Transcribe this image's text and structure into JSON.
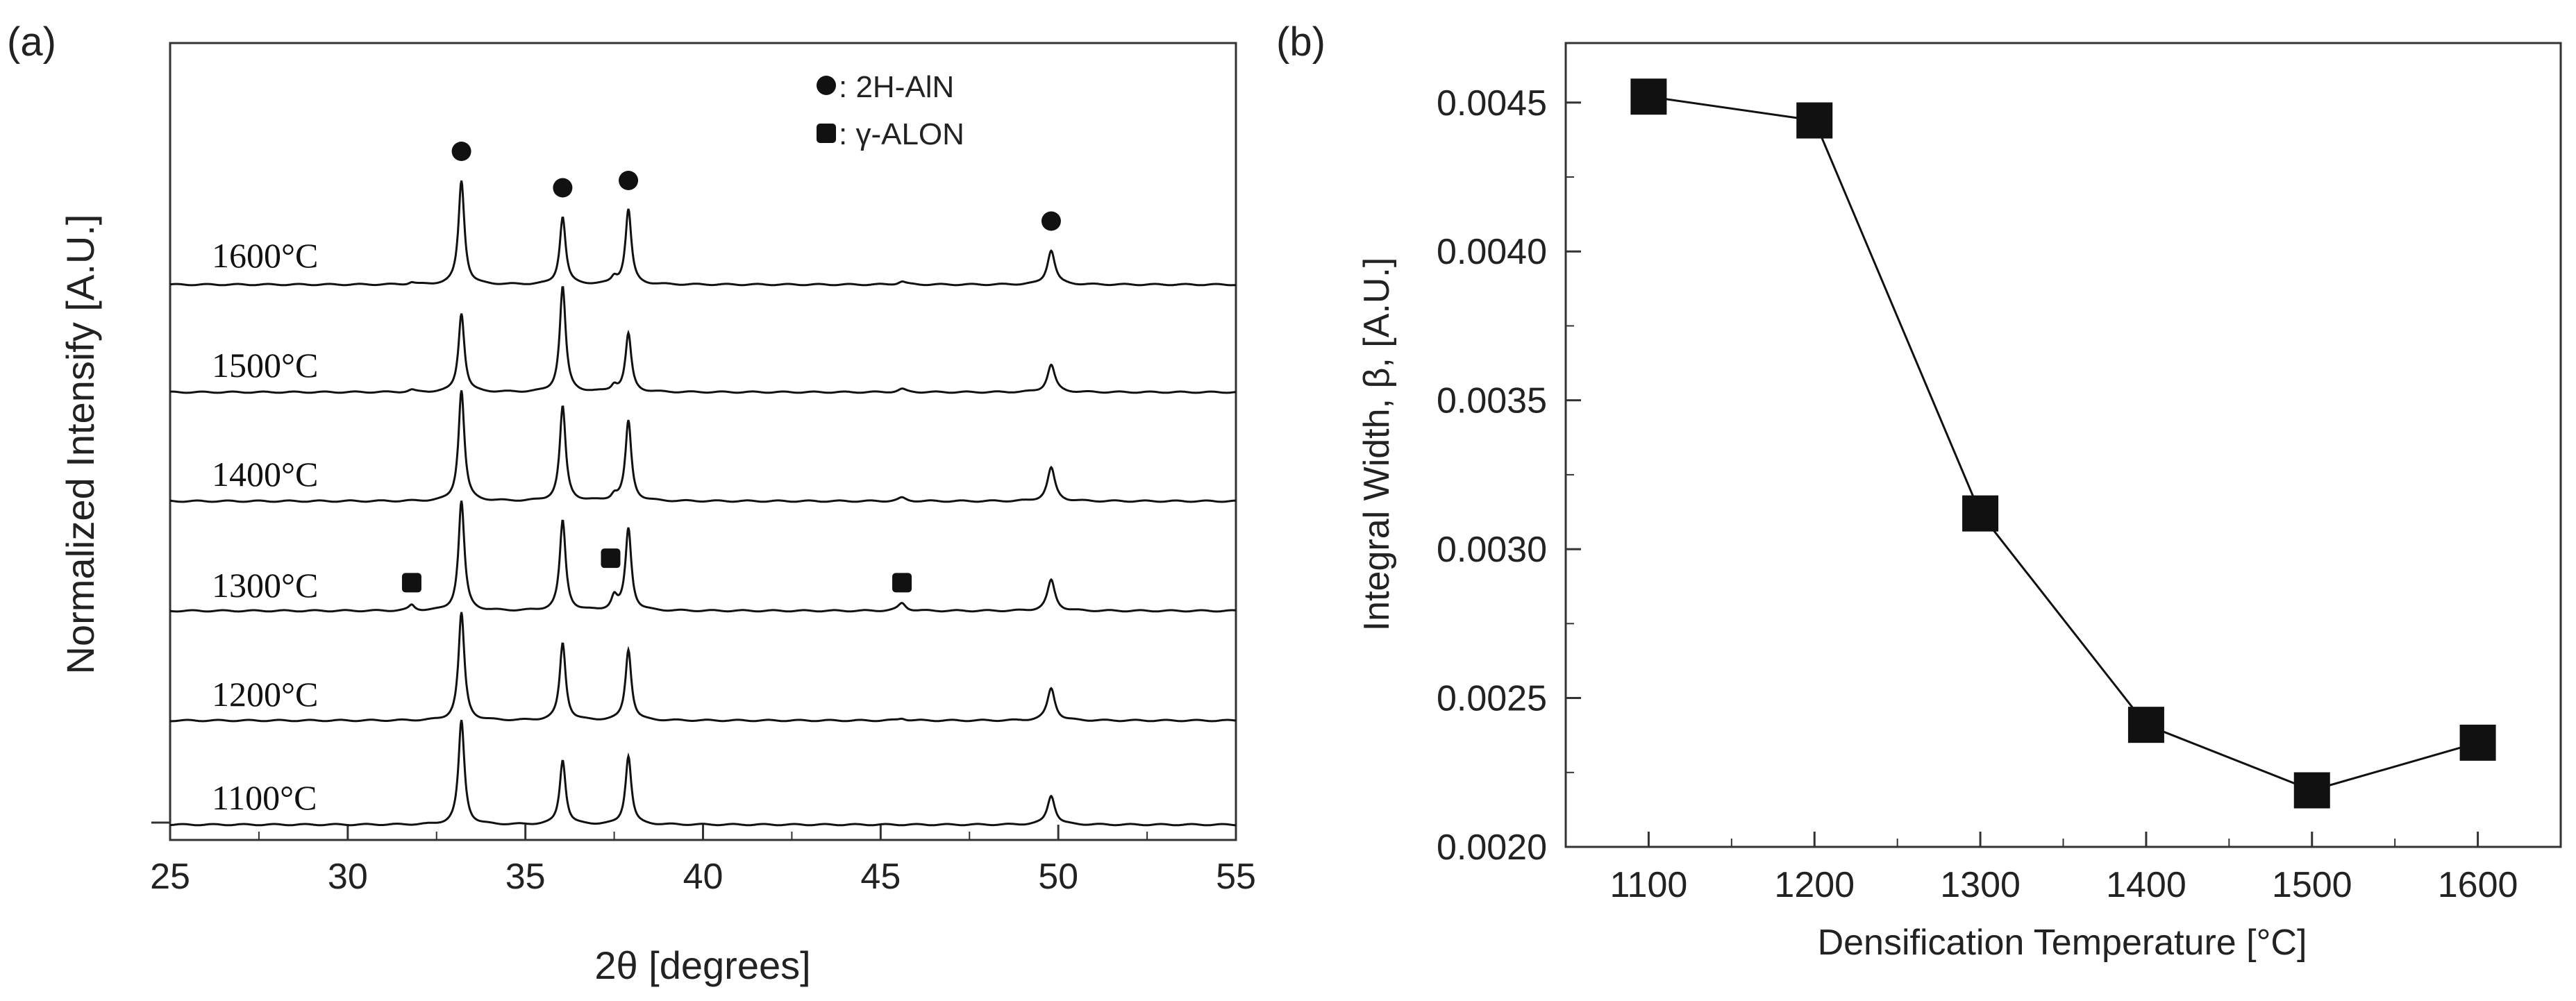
{
  "chart_data": [
    {
      "panel": "(a)",
      "type": "line",
      "xlabel": "2θ [degrees]",
      "ylabel": "Normalized Intensify [A.U.]",
      "xlim": [
        25,
        55
      ],
      "xticks": [
        "25",
        "30",
        "35",
        "40",
        "45",
        "50",
        "55"
      ],
      "legend": [
        {
          "marker": "circle",
          "label": ": 2H-AlN"
        },
        {
          "marker": "square",
          "label": ": γ-ALON"
        }
      ],
      "series": [
        {
          "name": "1600°C",
          "peaks": [
            {
              "x": 33.2,
              "h": 1.0
            },
            {
              "x": 36.05,
              "h": 0.65
            },
            {
              "x": 37.9,
              "h": 0.72
            },
            {
              "x": 49.8,
              "h": 0.33
            },
            {
              "x": 37.5,
              "h": 0.06
            },
            {
              "x": 45.6,
              "h": 0.03
            },
            {
              "x": 31.8,
              "h": 0.02
            }
          ]
        },
        {
          "name": "1500°C",
          "peaks": [
            {
              "x": 33.2,
              "h": 0.75
            },
            {
              "x": 36.05,
              "h": 1.0
            },
            {
              "x": 37.9,
              "h": 0.55
            },
            {
              "x": 49.8,
              "h": 0.26
            },
            {
              "x": 37.5,
              "h": 0.06
            },
            {
              "x": 45.6,
              "h": 0.03
            },
            {
              "x": 31.8,
              "h": 0.02
            }
          ]
        },
        {
          "name": "1400°C",
          "peaks": [
            {
              "x": 33.2,
              "h": 1.0
            },
            {
              "x": 36.05,
              "h": 0.85
            },
            {
              "x": 37.9,
              "h": 0.72
            },
            {
              "x": 49.8,
              "h": 0.3
            },
            {
              "x": 37.5,
              "h": 0.05
            },
            {
              "x": 45.6,
              "h": 0.03
            }
          ]
        },
        {
          "name": "1300°C",
          "peaks": [
            {
              "x": 33.2,
              "h": 1.0
            },
            {
              "x": 36.05,
              "h": 0.82
            },
            {
              "x": 37.9,
              "h": 0.75
            },
            {
              "x": 49.8,
              "h": 0.28
            },
            {
              "x": 37.5,
              "h": 0.12
            },
            {
              "x": 45.6,
              "h": 0.07
            },
            {
              "x": 31.8,
              "h": 0.05
            }
          ]
        },
        {
          "name": "1200°C",
          "peaks": [
            {
              "x": 33.2,
              "h": 1.0
            },
            {
              "x": 36.05,
              "h": 0.72
            },
            {
              "x": 37.9,
              "h": 0.66
            },
            {
              "x": 49.8,
              "h": 0.3
            },
            {
              "x": 45.6,
              "h": 0.02
            }
          ]
        },
        {
          "name": "1100°C",
          "peaks": [
            {
              "x": 33.2,
              "h": 1.0
            },
            {
              "x": 36.05,
              "h": 0.62
            },
            {
              "x": 37.9,
              "h": 0.66
            },
            {
              "x": 49.8,
              "h": 0.28
            }
          ]
        }
      ],
      "markers": [
        {
          "shape": "circle",
          "x": 33.2,
          "series": "1600°C"
        },
        {
          "shape": "circle",
          "x": 36.05,
          "series": "1600°C"
        },
        {
          "shape": "circle",
          "x": 37.9,
          "series": "1600°C"
        },
        {
          "shape": "circle",
          "x": 49.8,
          "series": "1600°C"
        },
        {
          "shape": "square",
          "x": 31.8,
          "series": "1300°C"
        },
        {
          "shape": "square",
          "x": 37.4,
          "series": "1300°C"
        },
        {
          "shape": "square",
          "x": 45.6,
          "series": "1300°C"
        }
      ]
    },
    {
      "panel": "(b)",
      "type": "line",
      "marker": "square",
      "xlabel": "Densification Temperature [°C]",
      "ylabel": "Integral Width, β, [A.U.]",
      "xlim": [
        1050,
        1650
      ],
      "ylim": [
        0.002,
        0.0047
      ],
      "xticks": [
        "1100",
        "1200",
        "1300",
        "1400",
        "1500",
        "1600"
      ],
      "yticks": [
        "0.0020",
        "0.0025",
        "0.0030",
        "0.0035",
        "0.0040",
        "0.0045"
      ],
      "x": [
        1100,
        1200,
        1300,
        1400,
        1500,
        1600
      ],
      "y": [
        0.00452,
        0.00444,
        0.00312,
        0.00241,
        0.00219,
        0.00235
      ]
    }
  ]
}
